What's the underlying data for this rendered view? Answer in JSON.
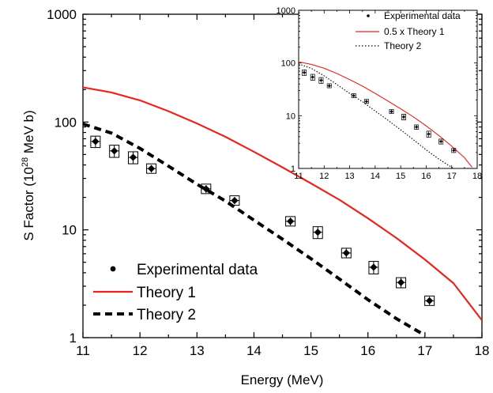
{
  "chart_data": [
    {
      "type": "line",
      "xlabel": "Energy (MeV)",
      "ylabel": {
        "prefix": "S Factor (10",
        "sup": "28",
        "suffix": " MeV b)"
      },
      "xlim": [
        11,
        18
      ],
      "ylim": [
        1,
        1000
      ],
      "yscale": "log",
      "xticks": [
        "11",
        "12",
        "13",
        "14",
        "15",
        "16",
        "17",
        "18"
      ],
      "yticks": [
        "1",
        "10",
        "100",
        "1000"
      ],
      "legend_position": "bottom-left",
      "series": [
        {
          "name": "Experimental data",
          "style": "markers-with-errorbars",
          "color": "#000000",
          "points": [
            {
              "x": 11.22,
              "y": 66,
              "yerr": 8
            },
            {
              "x": 11.55,
              "y": 54,
              "yerr": 7
            },
            {
              "x": 11.88,
              "y": 47,
              "yerr": 6
            },
            {
              "x": 12.2,
              "y": 37,
              "yerr": 3
            },
            {
              "x": 13.16,
              "y": 24,
              "yerr": 2
            },
            {
              "x": 13.66,
              "y": 18.7,
              "yerr": 1.4
            },
            {
              "x": 14.64,
              "y": 12,
              "yerr": 1
            },
            {
              "x": 15.12,
              "y": 9.5,
              "yerr": 1.2
            },
            {
              "x": 15.62,
              "y": 6.1,
              "yerr": 0.6
            },
            {
              "x": 16.1,
              "y": 4.5,
              "yerr": 0.6
            },
            {
              "x": 16.58,
              "y": 3.25,
              "yerr": 0.35
            },
            {
              "x": 17.08,
              "y": 2.2,
              "yerr": 0.2
            }
          ]
        },
        {
          "name": "Theory 1",
          "style": "solid",
          "color": "#e8261e",
          "x": [
            11,
            11.5,
            12,
            12.5,
            13,
            13.5,
            14,
            14.5,
            15,
            15.5,
            16,
            16.5,
            17,
            17.5,
            18
          ],
          "y": [
            210,
            188,
            159,
            126,
            97,
            73,
            53,
            38,
            27,
            19,
            12.8,
            8.4,
            5.3,
            3.2,
            1.45
          ]
        },
        {
          "name": "Theory 2",
          "style": "dashed",
          "color": "#000000",
          "x": [
            11,
            11.5,
            12,
            12.5,
            13,
            13.5,
            14,
            14.5,
            15,
            15.5,
            16,
            16.5,
            17
          ],
          "y": [
            96,
            79,
            57,
            39,
            26.5,
            18.5,
            12.3,
            8.2,
            5.4,
            3.5,
            2.25,
            1.5,
            1.05
          ]
        }
      ]
    },
    {
      "type": "line",
      "xlabel": "",
      "ylabel": "",
      "xlim": [
        11,
        18
      ],
      "ylim": [
        1,
        1000
      ],
      "yscale": "log",
      "xticks": [
        "11",
        "12",
        "13",
        "14",
        "15",
        "16",
        "17",
        "18"
      ],
      "xtick_minor": [
        "11.5",
        "12.5",
        "13.5",
        "14.5",
        "15.5",
        "16.5",
        "17.5"
      ],
      "yticks": [
        "1",
        "10",
        "100",
        "1000"
      ],
      "legend_position": "top-right",
      "series": [
        {
          "name": "Experimental data",
          "style": "markers-with-errorbars",
          "color": "#000000",
          "points": [
            {
              "x": 11.22,
              "y": 66,
              "yerr": 8
            },
            {
              "x": 11.55,
              "y": 54,
              "yerr": 7
            },
            {
              "x": 11.88,
              "y": 47,
              "yerr": 6
            },
            {
              "x": 12.2,
              "y": 37,
              "yerr": 3
            },
            {
              "x": 13.16,
              "y": 24,
              "yerr": 2
            },
            {
              "x": 13.66,
              "y": 18.7,
              "yerr": 1.4
            },
            {
              "x": 14.64,
              "y": 12,
              "yerr": 1
            },
            {
              "x": 15.12,
              "y": 9.5,
              "yerr": 1.2
            },
            {
              "x": 15.62,
              "y": 6.1,
              "yerr": 0.6
            },
            {
              "x": 16.1,
              "y": 4.5,
              "yerr": 0.6
            },
            {
              "x": 16.58,
              "y": 3.25,
              "yerr": 0.35
            },
            {
              "x": 17.08,
              "y": 2.2,
              "yerr": 0.2
            }
          ]
        },
        {
          "name": "0.5 x Theory 1",
          "style": "solid",
          "color": "#e8261e",
          "x": [
            11,
            11.5,
            12,
            12.5,
            13,
            13.5,
            14,
            14.5,
            15,
            15.5,
            16,
            16.5,
            17,
            17.5,
            17.8
          ],
          "y": [
            105,
            94,
            79.5,
            63,
            48.5,
            36.5,
            26.5,
            19,
            13.5,
            9.5,
            6.4,
            4.2,
            2.65,
            1.6,
            1.05
          ]
        },
        {
          "name": "Theory 2",
          "style": "dotted",
          "color": "#000000",
          "x": [
            11,
            11.5,
            12,
            12.5,
            13,
            13.5,
            14,
            14.5,
            15,
            15.5,
            16,
            16.5,
            17,
            17.1
          ],
          "y": [
            96,
            79,
            57,
            39,
            26.5,
            18.5,
            12.3,
            8.2,
            5.4,
            3.5,
            2.25,
            1.5,
            1.05,
            1.0
          ]
        }
      ]
    }
  ]
}
